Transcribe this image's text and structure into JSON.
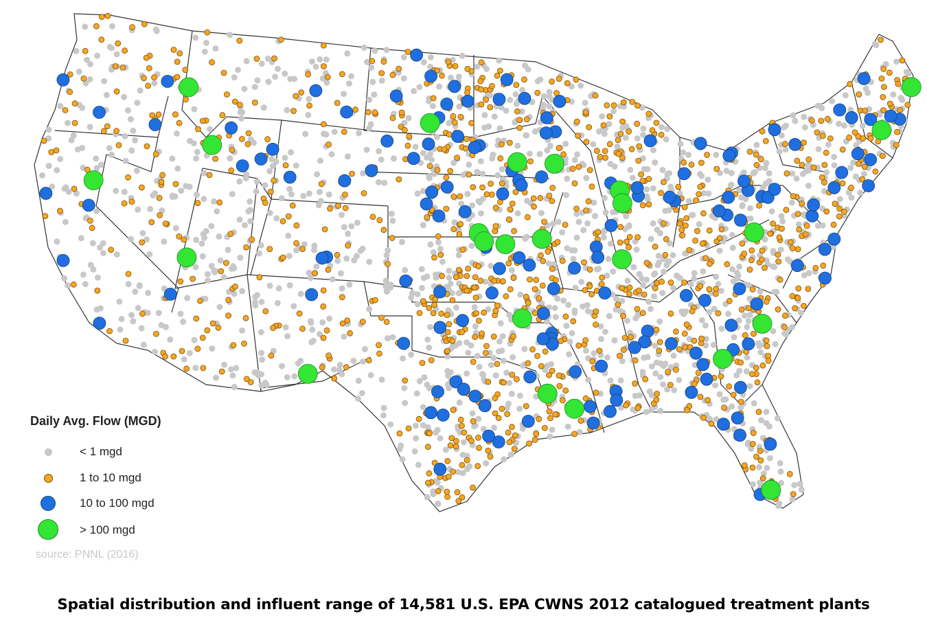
{
  "legend": {
    "title": "Daily Avg. Flow (MGD)",
    "items": [
      {
        "label": "< 1 mgd",
        "color": "#c8c8c8",
        "size": "small"
      },
      {
        "label": "1 to 10 mgd",
        "color": "#f5a623",
        "size": "medium"
      },
      {
        "label": "10 to 100 mgd",
        "color": "#1f6fe0",
        "size": "large"
      },
      {
        "label": "> 100 mgd",
        "color": "#33e633",
        "size": "xlarge"
      }
    ],
    "source": "source: PNNL (2016)"
  },
  "caption": "Spatial distribution and influent range of 14,581 U.S. EPA CWNS 2012  catalogued treatment plants"
}
